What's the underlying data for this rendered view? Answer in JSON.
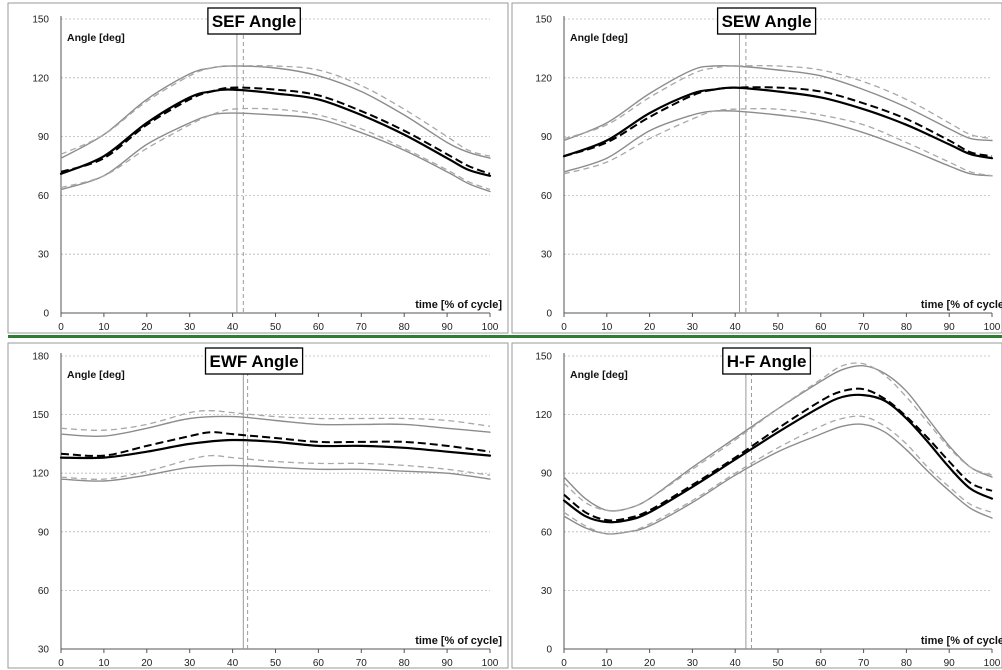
{
  "colors": {
    "mean_solid": "#000000",
    "mean_dashed": "#000000",
    "band_solid": "#8c8c8c",
    "band_dashed": "#a8a8a8",
    "grid": "#b8b8b8",
    "frame": "#9a9a9a",
    "separator": "#2e7d32",
    "vline_solid": "#9a9a9a",
    "vline_dashed": "#9a9a9a"
  },
  "chart_data": [
    {
      "type": "line",
      "title": "SEF Angle",
      "ylabel": "Angle [deg]",
      "xlabel": "time [% of cycle]",
      "xlim": [
        0,
        100
      ],
      "ylim": [
        0,
        150
      ],
      "xticks": [
        0,
        10,
        20,
        30,
        40,
        50,
        60,
        70,
        80,
        90,
        100
      ],
      "yticks": [
        0,
        30,
        60,
        90,
        120,
        150
      ],
      "grid": true,
      "series": [
        {
          "style": "mean-solid",
          "x": [
            0,
            10,
            20,
            30,
            35,
            40,
            50,
            60,
            70,
            80,
            90,
            95,
            100
          ],
          "y": [
            71,
            80,
            97,
            110,
            113,
            114,
            112,
            109,
            101,
            91,
            79,
            73,
            70
          ]
        },
        {
          "style": "mean-dashed",
          "x": [
            0,
            10,
            20,
            30,
            35,
            40,
            50,
            60,
            70,
            80,
            90,
            95,
            100
          ],
          "y": [
            72,
            79,
            96,
            109,
            113,
            115,
            114,
            111,
            103,
            93,
            81,
            75,
            71
          ]
        },
        {
          "style": "band-solid",
          "x": [
            0,
            10,
            20,
            30,
            35,
            40,
            50,
            60,
            70,
            80,
            90,
            95,
            100
          ],
          "y": [
            79,
            91,
            109,
            122,
            125,
            126,
            125,
            121,
            113,
            101,
            87,
            82,
            79
          ]
        },
        {
          "style": "band-dashed",
          "x": [
            0,
            10,
            20,
            30,
            35,
            40,
            50,
            60,
            70,
            80,
            90,
            95,
            100
          ],
          "y": [
            81,
            91,
            108,
            121,
            125,
            126,
            126,
            124,
            116,
            104,
            90,
            83,
            80
          ]
        },
        {
          "style": "band-solid",
          "x": [
            0,
            10,
            20,
            30,
            35,
            40,
            50,
            60,
            70,
            80,
            90,
            95,
            100
          ],
          "y": [
            63,
            70,
            86,
            97,
            101,
            102,
            101,
            99,
            92,
            83,
            72,
            66,
            62
          ]
        },
        {
          "style": "band-dashed",
          "x": [
            0,
            10,
            20,
            30,
            35,
            40,
            50,
            60,
            70,
            80,
            90,
            95,
            100
          ],
          "y": [
            64,
            70,
            84,
            96,
            101,
            104,
            104,
            101,
            94,
            84,
            73,
            67,
            63
          ]
        }
      ],
      "vlines": [
        {
          "x": 41,
          "style": "solid"
        },
        {
          "x": 42.5,
          "style": "dashed"
        }
      ]
    },
    {
      "type": "line",
      "title": "SEW Angle",
      "ylabel": "Angle [deg]",
      "xlabel": "time [% of cycle",
      "xlim": [
        0,
        100
      ],
      "ylim": [
        0,
        150
      ],
      "xticks": [
        0,
        10,
        20,
        30,
        40,
        50,
        60,
        70,
        80,
        90,
        100
      ],
      "yticks": [
        0,
        30,
        60,
        90,
        120,
        150
      ],
      "grid": true,
      "series": [
        {
          "style": "mean-solid",
          "x": [
            0,
            10,
            20,
            30,
            35,
            40,
            50,
            60,
            70,
            80,
            90,
            95,
            100
          ],
          "y": [
            80,
            88,
            102,
            112,
            114,
            115,
            113,
            110,
            104,
            96,
            86,
            81,
            79
          ]
        },
        {
          "style": "mean-dashed",
          "x": [
            0,
            10,
            20,
            30,
            35,
            40,
            50,
            60,
            70,
            80,
            90,
            95,
            100
          ],
          "y": [
            80,
            87,
            100,
            111,
            114,
            115,
            115,
            113,
            107,
            99,
            88,
            82,
            80
          ]
        },
        {
          "style": "band-solid",
          "x": [
            0,
            10,
            20,
            30,
            35,
            40,
            50,
            60,
            70,
            80,
            90,
            95,
            100
          ],
          "y": [
            88,
            97,
            112,
            124,
            126,
            126,
            124,
            121,
            114,
            105,
            94,
            89,
            88
          ]
        },
        {
          "style": "band-dashed",
          "x": [
            0,
            10,
            20,
            30,
            35,
            40,
            50,
            60,
            70,
            80,
            90,
            95,
            100
          ],
          "y": [
            89,
            96,
            110,
            122,
            125,
            126,
            126,
            124,
            118,
            109,
            97,
            91,
            89
          ]
        },
        {
          "style": "band-solid",
          "x": [
            0,
            10,
            20,
            30,
            35,
            40,
            50,
            60,
            70,
            80,
            90,
            95,
            100
          ],
          "y": [
            72,
            79,
            93,
            101,
            103,
            103,
            101,
            98,
            92,
            84,
            75,
            71,
            70
          ]
        },
        {
          "style": "band-dashed",
          "x": [
            0,
            10,
            20,
            30,
            35,
            40,
            50,
            60,
            70,
            80,
            90,
            95,
            100
          ],
          "y": [
            71,
            77,
            89,
            99,
            103,
            104,
            104,
            101,
            96,
            87,
            77,
            72,
            70
          ]
        }
      ],
      "vlines": [
        {
          "x": 41,
          "style": "solid"
        },
        {
          "x": 42.5,
          "style": "dashed"
        }
      ]
    },
    {
      "type": "line",
      "title": "EWF Angle",
      "ylabel": "Angle [deg]",
      "xlabel": "time [% of cycle]",
      "xlim": [
        0,
        100
      ],
      "ylim": [
        30,
        180
      ],
      "xticks": [
        0,
        10,
        20,
        30,
        40,
        50,
        60,
        70,
        80,
        90,
        100
      ],
      "yticks": [
        30,
        60,
        90,
        120,
        150,
        180
      ],
      "grid": true,
      "series": [
        {
          "style": "mean-solid",
          "x": [
            0,
            10,
            20,
            30,
            40,
            50,
            60,
            70,
            80,
            90,
            100
          ],
          "y": [
            128,
            128,
            131,
            135,
            137,
            136,
            134,
            134,
            133,
            131,
            129
          ]
        },
        {
          "style": "mean-dashed",
          "x": [
            0,
            10,
            20,
            30,
            35,
            40,
            50,
            60,
            70,
            80,
            90,
            100
          ],
          "y": [
            130,
            129,
            134,
            139,
            141,
            140,
            138,
            136,
            136,
            136,
            134,
            131
          ]
        },
        {
          "style": "band-solid",
          "x": [
            0,
            10,
            20,
            30,
            40,
            50,
            60,
            70,
            80,
            90,
            100
          ],
          "y": [
            140,
            139,
            143,
            148,
            149,
            147,
            145,
            145,
            145,
            143,
            141
          ]
        },
        {
          "style": "band-dashed",
          "x": [
            0,
            10,
            20,
            30,
            35,
            40,
            50,
            60,
            70,
            80,
            90,
            100
          ],
          "y": [
            143,
            142,
            145,
            151,
            152,
            151,
            149,
            148,
            148,
            148,
            147,
            144
          ]
        },
        {
          "style": "band-solid",
          "x": [
            0,
            10,
            20,
            30,
            40,
            50,
            60,
            70,
            80,
            90,
            100
          ],
          "y": [
            117,
            116,
            119,
            123,
            124,
            123,
            122,
            122,
            121,
            120,
            117
          ]
        },
        {
          "style": "band-dashed",
          "x": [
            0,
            10,
            20,
            30,
            35,
            40,
            50,
            60,
            70,
            80,
            90,
            100
          ],
          "y": [
            118,
            117,
            121,
            127,
            129,
            128,
            126,
            125,
            125,
            124,
            122,
            119
          ]
        }
      ],
      "vlines": [
        {
          "x": 42.5,
          "style": "solid"
        },
        {
          "x": 43.5,
          "style": "dashed"
        }
      ]
    },
    {
      "type": "line",
      "title": "H-F Angle",
      "ylabel": "Angle [deg]",
      "xlabel": "time [% of cycle",
      "xlim": [
        0,
        100
      ],
      "ylim": [
        0,
        150
      ],
      "xticks": [
        0,
        10,
        20,
        30,
        40,
        50,
        60,
        70,
        80,
        90,
        100
      ],
      "yticks": [
        0,
        30,
        60,
        90,
        120,
        150
      ],
      "grid": true,
      "series": [
        {
          "style": "mean-solid",
          "x": [
            0,
            5,
            10,
            15,
            20,
            30,
            40,
            50,
            60,
            65,
            70,
            75,
            80,
            85,
            90,
            95,
            100
          ],
          "y": [
            76,
            68,
            65,
            66,
            70,
            83,
            97,
            111,
            124,
            129,
            130,
            127,
            118,
            106,
            93,
            82,
            77
          ]
        },
        {
          "style": "mean-dashed",
          "x": [
            0,
            5,
            10,
            15,
            20,
            30,
            40,
            50,
            60,
            65,
            70,
            75,
            80,
            85,
            90,
            95,
            100
          ],
          "y": [
            79,
            70,
            66,
            67,
            71,
            84,
            98,
            113,
            127,
            132,
            133,
            128,
            119,
            108,
            96,
            85,
            81
          ]
        },
        {
          "style": "band-solid",
          "x": [
            0,
            5,
            10,
            15,
            20,
            30,
            40,
            50,
            60,
            65,
            70,
            75,
            80,
            85,
            90,
            95,
            100
          ],
          "y": [
            88,
            77,
            71,
            72,
            77,
            93,
            108,
            123,
            137,
            143,
            145,
            141,
            132,
            118,
            104,
            93,
            88
          ]
        },
        {
          "style": "band-dashed",
          "x": [
            0,
            5,
            10,
            15,
            20,
            30,
            40,
            50,
            60,
            65,
            70,
            75,
            80,
            85,
            90,
            95,
            100
          ],
          "y": [
            85,
            75,
            71,
            72,
            77,
            92,
            107,
            123,
            138,
            145,
            146,
            140,
            129,
            116,
            103,
            93,
            89
          ]
        },
        {
          "style": "band-solid",
          "x": [
            0,
            5,
            10,
            15,
            20,
            30,
            40,
            50,
            60,
            65,
            70,
            75,
            80,
            85,
            90,
            95,
            100
          ],
          "y": [
            68,
            62,
            59,
            60,
            63,
            75,
            89,
            101,
            110,
            114,
            115,
            111,
            102,
            91,
            81,
            72,
            67
          ]
        },
        {
          "style": "band-dashed",
          "x": [
            0,
            5,
            10,
            15,
            20,
            30,
            40,
            50,
            60,
            65,
            70,
            75,
            80,
            85,
            90,
            95,
            100
          ],
          "y": [
            70,
            63,
            59,
            60,
            64,
            76,
            90,
            103,
            114,
            118,
            119,
            114,
            105,
            93,
            83,
            74,
            70
          ]
        }
      ],
      "vlines": [
        {
          "x": 42.5,
          "style": "solid"
        },
        {
          "x": 43.8,
          "style": "dashed"
        }
      ]
    }
  ]
}
